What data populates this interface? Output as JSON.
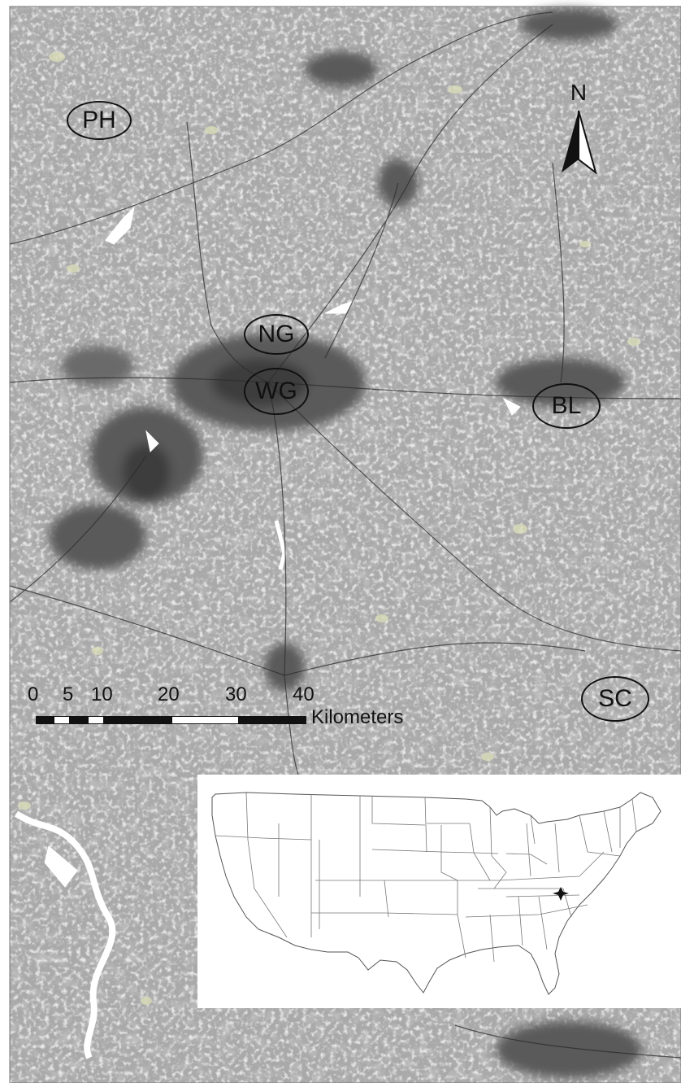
{
  "map": {
    "north_label": "N",
    "sites": [
      {
        "id": "ph",
        "label": "PH"
      },
      {
        "id": "ng",
        "label": "NG"
      },
      {
        "id": "wg",
        "label": "WG"
      },
      {
        "id": "bl",
        "label": "BL"
      },
      {
        "id": "sc",
        "label": "SC"
      }
    ],
    "scale_bar": {
      "ticks": [
        "0",
        "5",
        "10",
        "20",
        "30",
        "40"
      ],
      "unit": "Kilometers"
    },
    "inset": {
      "marker": "star-marker",
      "region": "contiguous-united-states"
    },
    "colors": {
      "land_base": "#a9a9a9",
      "forest_gray": "#8a8a8a",
      "open_light": "#cfcfcf",
      "urban_dark": "#5a5a5a",
      "urban_core": "#3e3e3e",
      "water": "#ffffff",
      "pale_patch": "#d9dcb8",
      "roads": "#2b2b2b",
      "outline": "#111111"
    }
  }
}
